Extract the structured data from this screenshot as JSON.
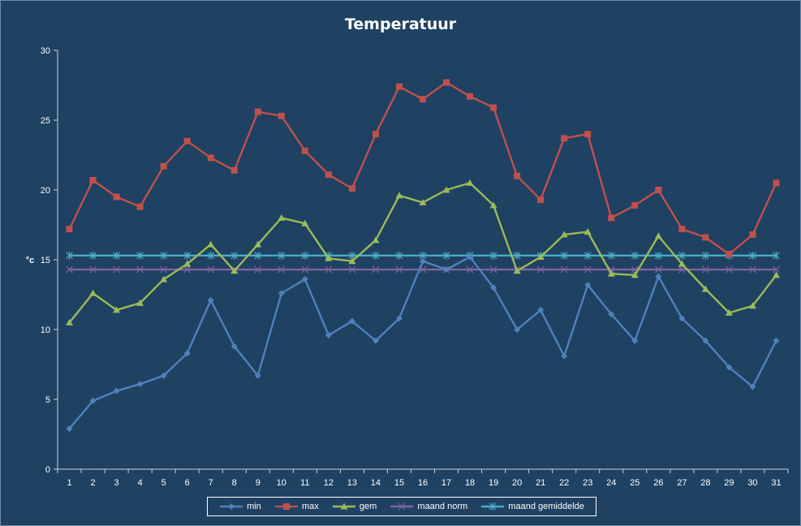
{
  "chart_data": {
    "type": "line",
    "title": "Temperatuur",
    "xlabel": "",
    "ylabel": "°c",
    "ylim": [
      0,
      30
    ],
    "yticks": [
      0,
      5,
      10,
      15,
      20,
      25,
      30
    ],
    "grid": false,
    "legend_position": "bottom",
    "x": [
      1,
      2,
      3,
      4,
      5,
      6,
      7,
      8,
      9,
      10,
      11,
      12,
      13,
      14,
      15,
      16,
      17,
      18,
      19,
      20,
      21,
      22,
      23,
      24,
      25,
      26,
      27,
      28,
      29,
      30,
      31
    ],
    "series": [
      {
        "name": "min",
        "color": "#4f81bd",
        "marker": "diamond",
        "values": [
          2.9,
          4.9,
          5.6,
          6.1,
          6.7,
          8.3,
          12.1,
          8.8,
          6.7,
          12.6,
          13.6,
          9.6,
          10.6,
          9.2,
          10.8,
          14.9,
          14.3,
          15.2,
          13.0,
          10.0,
          11.4,
          8.1,
          13.2,
          11.1,
          9.2,
          13.8,
          10.8,
          9.2,
          7.3,
          5.9,
          9.2
        ]
      },
      {
        "name": "max",
        "color": "#c0504d",
        "marker": "square",
        "values": [
          17.2,
          20.7,
          19.5,
          18.8,
          21.7,
          23.5,
          22.3,
          21.4,
          25.6,
          25.3,
          22.8,
          21.1,
          20.1,
          24.0,
          27.4,
          26.5,
          27.7,
          26.7,
          25.9,
          21.0,
          19.3,
          23.7,
          24.0,
          18.0,
          18.9,
          20.0,
          17.2,
          16.6,
          15.4,
          16.8,
          20.5
        ]
      },
      {
        "name": "gem",
        "color": "#9bbb59",
        "marker": "triangle",
        "values": [
          10.5,
          12.6,
          11.4,
          11.9,
          13.6,
          14.7,
          16.1,
          14.2,
          16.1,
          18.0,
          17.6,
          15.1,
          14.9,
          16.4,
          19.6,
          19.1,
          20.0,
          20.5,
          18.9,
          14.2,
          15.2,
          16.8,
          17.0,
          14.0,
          13.9,
          16.7,
          14.7,
          12.9,
          11.2,
          11.7,
          13.9
        ]
      },
      {
        "name": "maand norm",
        "color": "#8064a2",
        "marker": "x",
        "values": [
          14.3,
          14.3,
          14.3,
          14.3,
          14.3,
          14.3,
          14.3,
          14.3,
          14.3,
          14.3,
          14.3,
          14.3,
          14.3,
          14.3,
          14.3,
          14.3,
          14.3,
          14.3,
          14.3,
          14.3,
          14.3,
          14.3,
          14.3,
          14.3,
          14.3,
          14.3,
          14.3,
          14.3,
          14.3,
          14.3,
          14.3
        ]
      },
      {
        "name": "maand gemiddelde",
        "color": "#4bacc6",
        "marker": "star",
        "values": [
          15.3,
          15.3,
          15.3,
          15.3,
          15.3,
          15.3,
          15.3,
          15.3,
          15.3,
          15.3,
          15.3,
          15.3,
          15.3,
          15.3,
          15.3,
          15.3,
          15.3,
          15.3,
          15.3,
          15.3,
          15.3,
          15.3,
          15.3,
          15.3,
          15.3,
          15.3,
          15.3,
          15.3,
          15.3,
          15.3,
          15.3
        ]
      }
    ]
  }
}
